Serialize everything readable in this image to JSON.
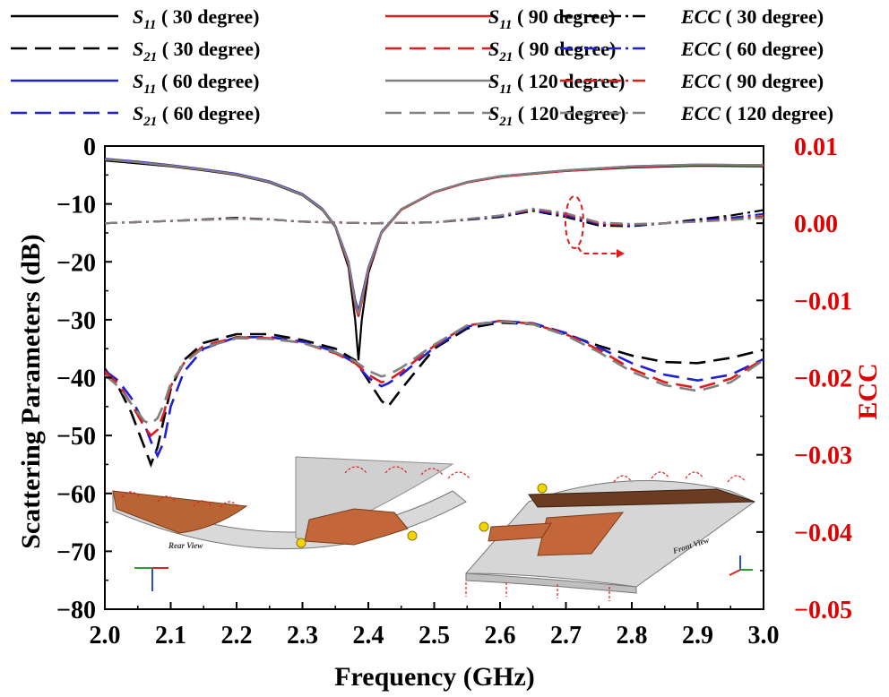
{
  "chart_data": {
    "type": "line",
    "xlabel": "Frequency (GHz)",
    "ylabel_left": "Scattering Parameters (dB)",
    "ylabel_right": "ECC",
    "xlim": [
      2.0,
      3.0
    ],
    "ylim_left": [
      -80,
      0
    ],
    "ylim_right": [
      -0.05,
      0.01
    ],
    "x_ticks": [
      "2.0",
      "2.1",
      "2.2",
      "2.3",
      "2.4",
      "2.5",
      "2.6",
      "2.7",
      "2.8",
      "2.9",
      "3.0"
    ],
    "y_ticks_left": [
      "0",
      "−10",
      "−20",
      "−30",
      "−40",
      "−50",
      "−60",
      "−70",
      "−80"
    ],
    "y_ticks_right": [
      "0.01",
      "0.00",
      "−0.01",
      "−0.02",
      "−0.03",
      "−0.04",
      "−0.05"
    ],
    "colors": {
      "30": "#000000",
      "60": "#1f1fd6",
      "90": "#e01b1b",
      "120": "#808080"
    },
    "legend": [
      {
        "key": "s11_30",
        "prefix": "S",
        "sub": "11",
        "text": "( 30 degree)",
        "color": "#000000",
        "dash": "solid"
      },
      {
        "key": "s21_30",
        "prefix": "S",
        "sub": "21",
        "text": "( 30 degree)",
        "color": "#000000",
        "dash": "dash"
      },
      {
        "key": "s11_60",
        "prefix": "S",
        "sub": "11",
        "text": "( 60 degree)",
        "color": "#1f1fd6",
        "dash": "solid"
      },
      {
        "key": "s21_60",
        "prefix": "S",
        "sub": "21",
        "text": "( 60 degree)",
        "color": "#1f1fd6",
        "dash": "dash"
      },
      {
        "key": "s11_90",
        "prefix": "S",
        "sub": "11",
        "text": "( 90 degree)",
        "color": "#e01b1b",
        "dash": "solid"
      },
      {
        "key": "s21_90",
        "prefix": "S",
        "sub": "21",
        "text": "( 90 degree)",
        "color": "#e01b1b",
        "dash": "dash"
      },
      {
        "key": "s11_120",
        "prefix": "S",
        "sub": "11",
        "text": "( 120 degree)",
        "color": "#808080",
        "dash": "solid"
      },
      {
        "key": "s21_120",
        "prefix": "S",
        "sub": "21",
        "text": "( 120 degree)",
        "color": "#808080",
        "dash": "dash"
      },
      {
        "key": "ecc_30",
        "prefix": "ECC",
        "sub": "",
        "text": "( 30 degree)",
        "color": "#000000",
        "dash": "dashdot"
      },
      {
        "key": "ecc_60",
        "prefix": "ECC",
        "sub": "",
        "text": "( 60 degree)",
        "color": "#1f1fd6",
        "dash": "dashdot"
      },
      {
        "key": "ecc_90",
        "prefix": "ECC",
        "sub": "",
        "text": "( 90 degree)",
        "color": "#e01b1b",
        "dash": "dashdot"
      },
      {
        "key": "ecc_120",
        "prefix": "ECC",
        "sub": "",
        "text": "( 120 degree)",
        "color": "#808080",
        "dash": "dashdot"
      }
    ],
    "series": [
      {
        "key": "s11_30",
        "axis": "left",
        "color": "#000000",
        "dash": "solid",
        "x": [
          2.0,
          2.05,
          2.1,
          2.15,
          2.2,
          2.25,
          2.3,
          2.33,
          2.35,
          2.37,
          2.38,
          2.385,
          2.39,
          2.4,
          2.42,
          2.45,
          2.5,
          2.55,
          2.6,
          2.7,
          2.8,
          2.9,
          3.0
        ],
        "y": [
          -2.5,
          -3.0,
          -3.5,
          -4.2,
          -5.0,
          -6.3,
          -8.5,
          -11.0,
          -14.0,
          -21.0,
          -30.0,
          -37.0,
          -30.0,
          -22.0,
          -15.0,
          -11.0,
          -8.0,
          -6.3,
          -5.3,
          -4.3,
          -3.7,
          -3.4,
          -3.5
        ]
      },
      {
        "key": "s11_60",
        "axis": "left",
        "color": "#1f1fd6",
        "dash": "solid",
        "x": [
          2.0,
          2.05,
          2.1,
          2.15,
          2.2,
          2.25,
          2.3,
          2.33,
          2.35,
          2.37,
          2.38,
          2.385,
          2.39,
          2.4,
          2.42,
          2.45,
          2.5,
          2.55,
          2.6,
          2.7,
          2.8,
          2.9,
          3.0
        ],
        "y": [
          -2.2,
          -2.7,
          -3.3,
          -4.0,
          -4.8,
          -6.1,
          -8.3,
          -10.8,
          -13.8,
          -20.0,
          -26.5,
          -28.5,
          -26.0,
          -21.0,
          -14.8,
          -10.9,
          -7.9,
          -6.2,
          -5.2,
          -4.2,
          -3.5,
          -3.2,
          -3.3
        ]
      },
      {
        "key": "s11_90",
        "axis": "left",
        "color": "#e01b1b",
        "dash": "solid",
        "x": [
          2.0,
          2.05,
          2.1,
          2.15,
          2.2,
          2.25,
          2.3,
          2.33,
          2.35,
          2.37,
          2.38,
          2.385,
          2.39,
          2.4,
          2.42,
          2.45,
          2.5,
          2.55,
          2.6,
          2.7,
          2.8,
          2.9,
          3.0
        ],
        "y": [
          -2.3,
          -2.8,
          -3.4,
          -4.1,
          -4.9,
          -6.2,
          -8.4,
          -10.9,
          -13.9,
          -20.5,
          -27.5,
          -29.5,
          -27.0,
          -21.5,
          -15.0,
          -11.0,
          -8.0,
          -6.3,
          -5.3,
          -4.3,
          -3.6,
          -3.3,
          -3.4
        ]
      },
      {
        "key": "s11_120",
        "axis": "left",
        "color": "#808080",
        "dash": "solid",
        "x": [
          2.0,
          2.05,
          2.1,
          2.15,
          2.2,
          2.25,
          2.3,
          2.33,
          2.35,
          2.37,
          2.38,
          2.385,
          2.39,
          2.4,
          2.42,
          2.45,
          2.5,
          2.55,
          2.6,
          2.7,
          2.8,
          2.9,
          3.0
        ],
        "y": [
          -2.3,
          -2.8,
          -3.4,
          -4.1,
          -4.9,
          -6.2,
          -8.4,
          -10.9,
          -13.9,
          -20.2,
          -27.0,
          -29.0,
          -26.5,
          -21.2,
          -14.9,
          -10.9,
          -7.9,
          -6.2,
          -5.2,
          -4.2,
          -3.5,
          -3.2,
          -3.3
        ]
      },
      {
        "key": "s21_30",
        "axis": "left",
        "color": "#000000",
        "dash": "dash",
        "x": [
          2.0,
          2.02,
          2.04,
          2.06,
          2.07,
          2.08,
          2.09,
          2.1,
          2.12,
          2.15,
          2.2,
          2.25,
          2.3,
          2.35,
          2.38,
          2.4,
          2.42,
          2.43,
          2.45,
          2.5,
          2.55,
          2.6,
          2.65,
          2.7,
          2.75,
          2.8,
          2.85,
          2.9,
          2.95,
          3.0
        ],
        "y": [
          -38.5,
          -41.5,
          -46.0,
          -52.0,
          -55.0,
          -52.0,
          -47.0,
          -42.0,
          -37.0,
          -34.0,
          -32.5,
          -32.5,
          -33.5,
          -35.0,
          -37.0,
          -40.5,
          -44.0,
          -45.0,
          -42.0,
          -35.0,
          -31.5,
          -30.5,
          -30.8,
          -32.5,
          -34.5,
          -36.2,
          -37.3,
          -37.5,
          -36.6,
          -35.2
        ]
      },
      {
        "key": "s21_60",
        "axis": "left",
        "color": "#1f1fd6",
        "dash": "dash",
        "x": [
          2.0,
          2.02,
          2.04,
          2.06,
          2.07,
          2.08,
          2.09,
          2.1,
          2.12,
          2.15,
          2.2,
          2.25,
          2.3,
          2.35,
          2.38,
          2.4,
          2.42,
          2.43,
          2.45,
          2.5,
          2.55,
          2.6,
          2.65,
          2.7,
          2.75,
          2.8,
          2.85,
          2.9,
          2.95,
          3.0
        ],
        "y": [
          -38.8,
          -40.5,
          -43.5,
          -48.0,
          -51.0,
          -53.5,
          -51.0,
          -45.0,
          -39.0,
          -35.0,
          -33.0,
          -33.0,
          -33.8,
          -35.5,
          -37.5,
          -40.0,
          -41.5,
          -41.0,
          -39.5,
          -34.8,
          -31.2,
          -30.2,
          -30.6,
          -32.3,
          -34.8,
          -37.5,
          -39.5,
          -40.5,
          -39.5,
          -36.8
        ]
      },
      {
        "key": "s21_90",
        "axis": "left",
        "color": "#e01b1b",
        "dash": "dash",
        "x": [
          2.0,
          2.02,
          2.04,
          2.06,
          2.07,
          2.08,
          2.09,
          2.1,
          2.12,
          2.15,
          2.2,
          2.25,
          2.3,
          2.35,
          2.38,
          2.4,
          2.42,
          2.43,
          2.45,
          2.5,
          2.55,
          2.6,
          2.65,
          2.7,
          2.75,
          2.8,
          2.85,
          2.9,
          2.95,
          3.0
        ],
        "y": [
          -39.0,
          -41.0,
          -44.5,
          -48.5,
          -50.0,
          -49.0,
          -46.0,
          -41.5,
          -37.5,
          -34.5,
          -33.0,
          -33.2,
          -34.0,
          -35.8,
          -37.5,
          -39.5,
          -40.8,
          -40.5,
          -39.0,
          -34.5,
          -31.0,
          -30.2,
          -30.7,
          -32.5,
          -35.2,
          -38.5,
          -40.8,
          -41.8,
          -40.2,
          -36.8
        ]
      },
      {
        "key": "s21_120",
        "axis": "left",
        "color": "#808080",
        "dash": "dash",
        "x": [
          2.0,
          2.02,
          2.04,
          2.06,
          2.07,
          2.08,
          2.09,
          2.1,
          2.12,
          2.15,
          2.2,
          2.25,
          2.3,
          2.35,
          2.38,
          2.4,
          2.42,
          2.43,
          2.45,
          2.5,
          2.55,
          2.6,
          2.65,
          2.7,
          2.75,
          2.8,
          2.85,
          2.9,
          2.95,
          3.0
        ],
        "y": [
          -39.5,
          -41.5,
          -44.5,
          -47.5,
          -48.0,
          -47.0,
          -44.5,
          -41.0,
          -37.5,
          -34.8,
          -33.2,
          -33.3,
          -34.0,
          -35.6,
          -37.2,
          -38.8,
          -39.8,
          -39.5,
          -38.3,
          -34.3,
          -31.0,
          -30.3,
          -30.8,
          -32.7,
          -35.6,
          -39.0,
          -41.3,
          -42.3,
          -40.8,
          -37.0
        ]
      },
      {
        "key": "ecc_30",
        "axis": "right",
        "color": "#000000",
        "dash": "dashdot",
        "x": [
          2.0,
          2.1,
          2.2,
          2.25,
          2.3,
          2.4,
          2.5,
          2.6,
          2.65,
          2.7,
          2.75,
          2.8,
          2.85,
          2.9,
          2.95,
          3.0
        ],
        "y": [
          0.0,
          0.0003,
          0.0007,
          0.0005,
          0.0002,
          0.0,
          0.0001,
          0.0008,
          0.0016,
          0.0008,
          -0.0003,
          -0.0004,
          0.0,
          0.0005,
          0.001,
          0.0017
        ]
      },
      {
        "key": "ecc_60",
        "axis": "right",
        "color": "#1f1fd6",
        "dash": "dashdot",
        "x": [
          2.0,
          2.1,
          2.2,
          2.25,
          2.3,
          2.4,
          2.5,
          2.6,
          2.65,
          2.7,
          2.75,
          2.8,
          2.85,
          2.9,
          2.95,
          3.0
        ],
        "y": [
          0.0,
          0.0003,
          0.0006,
          0.0005,
          0.0002,
          0.0,
          0.0001,
          0.0009,
          0.0017,
          0.001,
          -0.0001,
          -0.0003,
          0.0,
          0.0003,
          0.0007,
          0.0012
        ]
      },
      {
        "key": "ecc_90",
        "axis": "right",
        "color": "#e01b1b",
        "dash": "dashdot",
        "x": [
          2.0,
          2.1,
          2.2,
          2.25,
          2.3,
          2.4,
          2.5,
          2.6,
          2.65,
          2.7,
          2.75,
          2.8,
          2.85,
          2.9,
          2.95,
          3.0
        ],
        "y": [
          0.0,
          0.0003,
          0.0006,
          0.0005,
          0.0002,
          0.0,
          0.0001,
          0.001,
          0.0018,
          0.0012,
          0.0,
          -0.0002,
          0.0,
          0.0002,
          0.0005,
          0.0009
        ]
      },
      {
        "key": "ecc_120",
        "axis": "right",
        "color": "#808080",
        "dash": "dashdot",
        "x": [
          2.0,
          2.1,
          2.2,
          2.25,
          2.3,
          2.4,
          2.5,
          2.6,
          2.65,
          2.7,
          2.75,
          2.8,
          2.85,
          2.9,
          2.95,
          3.0
        ],
        "y": [
          0.0,
          0.0003,
          0.0006,
          0.0005,
          0.0002,
          0.0,
          0.0001,
          0.001,
          0.0019,
          0.0013,
          0.0001,
          -0.0001,
          0.0,
          0.0002,
          0.0004,
          0.0007
        ]
      }
    ],
    "insets": {
      "rear_label": "Rear View",
      "front_label": "Front View"
    },
    "grid": false
  }
}
